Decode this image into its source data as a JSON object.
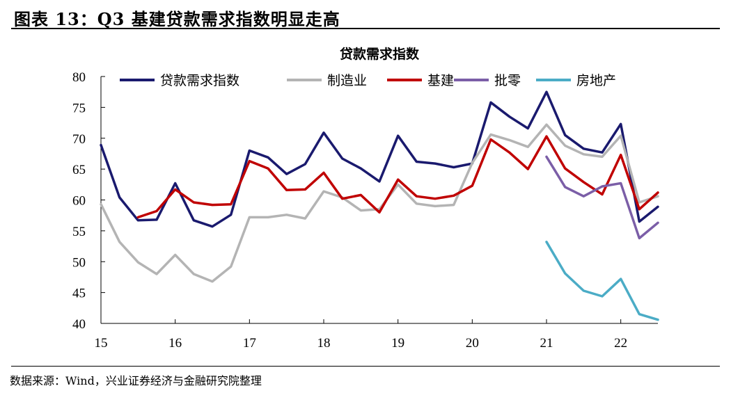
{
  "figure": {
    "title": "图表 13：Q3 基建贷款需求指数明显走高",
    "source": "数据来源：Wind，兴业证券经济与金融研究院整理"
  },
  "chart_data": {
    "type": "line",
    "title": "贷款需求指数",
    "xlabel": "",
    "ylabel": "",
    "ylim": [
      40,
      80
    ],
    "yticks": [
      "80",
      "75",
      "70",
      "65",
      "60",
      "55",
      "50",
      "45",
      "40"
    ],
    "xlim": [
      2015,
      2022.5
    ],
    "xticks": [
      "15",
      "16",
      "17",
      "18",
      "19",
      "20",
      "21",
      "22"
    ],
    "grid": false,
    "legend_position": "top",
    "series": [
      {
        "name": "贷款需求指数",
        "color": "#1a1a6e",
        "x": [
          2015.0,
          2015.25,
          2015.5,
          2015.75,
          2016.0,
          2016.25,
          2016.5,
          2016.75,
          2017.0,
          2017.25,
          2017.5,
          2017.75,
          2018.0,
          2018.25,
          2018.5,
          2018.75,
          2019.0,
          2019.25,
          2019.5,
          2019.75,
          2020.0,
          2020.25,
          2020.5,
          2020.75,
          2021.0,
          2021.25,
          2021.5,
          2021.75,
          2022.0,
          2022.25,
          2022.5
        ],
        "y": [
          68.9,
          60.4,
          56.7,
          56.8,
          62.7,
          56.7,
          55.7,
          57.6,
          68.0,
          66.9,
          64.2,
          65.8,
          70.9,
          66.7,
          65.1,
          63.0,
          70.4,
          66.2,
          65.9,
          65.3,
          65.9,
          75.8,
          73.5,
          71.6,
          77.5,
          70.5,
          68.3,
          67.7,
          72.3,
          56.5,
          58.9
        ]
      },
      {
        "name": "制造业",
        "color": "#b4b4b4",
        "x": [
          2015.0,
          2015.25,
          2015.5,
          2015.75,
          2016.0,
          2016.25,
          2016.5,
          2016.75,
          2017.0,
          2017.25,
          2017.5,
          2017.75,
          2018.0,
          2018.25,
          2018.5,
          2018.75,
          2019.0,
          2019.25,
          2019.5,
          2019.75,
          2020.0,
          2020.25,
          2020.5,
          2020.75,
          2021.0,
          2021.25,
          2021.5,
          2021.75,
          2022.0,
          2022.25,
          2022.5
        ],
        "y": [
          59.3,
          53.2,
          49.9,
          48.0,
          51.1,
          48.0,
          46.8,
          49.2,
          57.2,
          57.2,
          57.6,
          57.0,
          61.4,
          60.4,
          58.3,
          58.5,
          62.5,
          59.4,
          59.0,
          59.2,
          66.0,
          70.6,
          69.7,
          68.6,
          72.2,
          68.8,
          67.4,
          67.0,
          70.4,
          59.6,
          60.6
        ]
      },
      {
        "name": "基建",
        "color": "#c00000",
        "x": [
          2015.5,
          2015.75,
          2016.0,
          2016.25,
          2016.5,
          2016.75,
          2017.0,
          2017.25,
          2017.5,
          2017.75,
          2018.0,
          2018.25,
          2018.5,
          2018.75,
          2019.0,
          2019.25,
          2019.5,
          2019.75,
          2020.0,
          2020.25,
          2020.5,
          2020.75,
          2021.0,
          2021.25,
          2021.5,
          2021.75,
          2022.0,
          2022.25,
          2022.5
        ],
        "y": [
          57.2,
          58.2,
          61.7,
          59.6,
          59.2,
          59.3,
          66.3,
          65.1,
          61.6,
          61.7,
          64.4,
          60.2,
          60.8,
          58.0,
          63.3,
          60.6,
          60.2,
          60.7,
          62.3,
          69.8,
          67.7,
          65.0,
          70.3,
          65.1,
          62.9,
          60.9,
          67.3,
          58.5,
          61.2
        ]
      },
      {
        "name": "批零",
        "color": "#7b5ea7",
        "x": [
          2021.0,
          2021.25,
          2021.5,
          2021.75,
          2022.0,
          2022.25,
          2022.5
        ],
        "y": [
          67.0,
          62.1,
          60.6,
          62.2,
          62.7,
          53.8,
          56.3
        ]
      },
      {
        "name": "房地产",
        "color": "#4bacc6",
        "x": [
          2021.0,
          2021.25,
          2021.5,
          2021.75,
          2022.0,
          2022.25,
          2022.5
        ],
        "y": [
          53.2,
          48.1,
          45.3,
          44.4,
          47.2,
          41.5,
          40.6
        ]
      }
    ]
  }
}
